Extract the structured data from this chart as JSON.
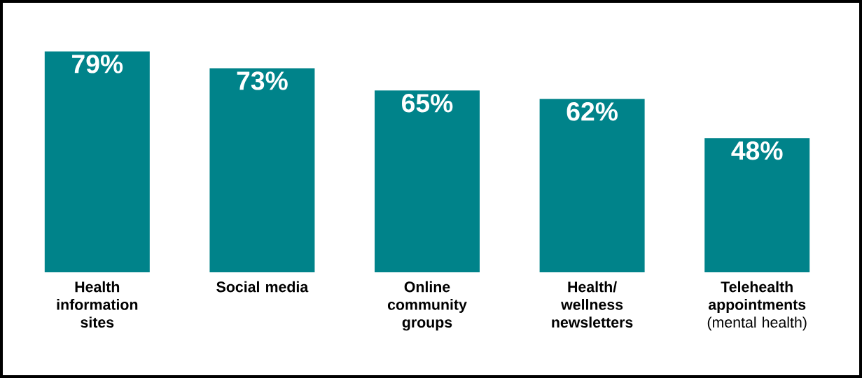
{
  "chart_data": {
    "type": "bar",
    "categories": [
      "Health information sites",
      "Social media",
      "Online community groups",
      "Health/ wellness newsletters",
      "**Telehealth appointments** (mental health)"
    ],
    "values": [
      79,
      73,
      65,
      62,
      48
    ],
    "value_labels": [
      "79%",
      "73%",
      "65%",
      "62%",
      "48%"
    ],
    "color": "#00838a"
  }
}
